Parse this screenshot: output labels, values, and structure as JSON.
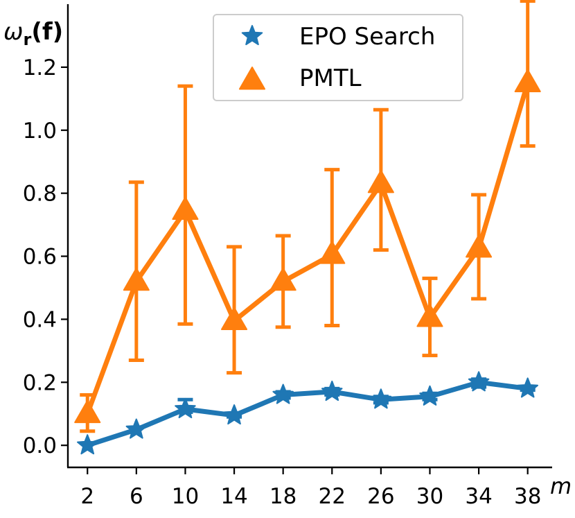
{
  "chart_data": {
    "type": "line",
    "x": [
      2,
      6,
      10,
      14,
      18,
      22,
      26,
      30,
      34,
      38
    ],
    "xticks": [
      "2",
      "6",
      "10",
      "14",
      "18",
      "22",
      "26",
      "30",
      "34",
      "38"
    ],
    "yticks": [
      "0.0",
      "0.2",
      "0.4",
      "0.6",
      "0.8",
      "1.0",
      "1.2"
    ],
    "ylim": [
      -0.07,
      1.4
    ],
    "xlabel": "m",
    "ylabel": "ω_r(f)",
    "ylabel_main": "ω",
    "ylabel_sub": "r",
    "ylabel_arg": "(f)",
    "grid": false,
    "legend": "top-center",
    "series": [
      {
        "name": "EPO Search",
        "marker": "star",
        "color": "#1f77b4",
        "values": [
          0.0,
          0.05,
          0.115,
          0.095,
          0.16,
          0.17,
          0.145,
          0.155,
          0.2,
          0.18
        ],
        "err_lower": [
          0.0,
          0.0,
          0.105,
          0.09,
          0.15,
          0.16,
          0.135,
          0.145,
          0.185,
          0.175
        ],
        "err_upper": [
          0.0,
          0.0,
          0.145,
          0.095,
          0.17,
          0.18,
          0.155,
          0.165,
          0.21,
          0.185
        ]
      },
      {
        "name": "PMTL",
        "marker": "triangle",
        "color": "#ff7f0e",
        "values": [
          0.1,
          0.52,
          0.745,
          0.395,
          0.52,
          0.605,
          0.83,
          0.405,
          0.625,
          1.15
        ],
        "err_lower": [
          0.045,
          0.27,
          0.385,
          0.23,
          0.375,
          0.38,
          0.62,
          0.285,
          0.465,
          0.95
        ],
        "err_upper": [
          0.16,
          0.835,
          1.14,
          0.63,
          0.665,
          0.875,
          1.065,
          0.53,
          0.795,
          1.41
        ]
      }
    ]
  }
}
